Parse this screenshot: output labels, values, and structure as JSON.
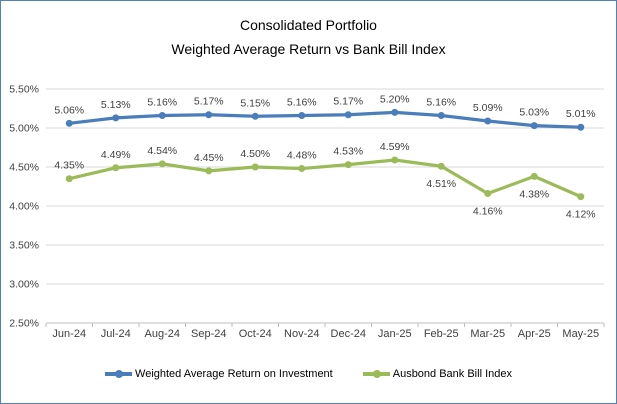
{
  "title": {
    "line1": "Consolidated Portfolio",
    "line2": "Weighted Average Return vs Bank Bill Index"
  },
  "chart_data": {
    "type": "line",
    "title": "Consolidated Portfolio Weighted Average Return vs Bank Bill Index",
    "categories": [
      "Jun-24",
      "Jul-24",
      "Aug-24",
      "Sep-24",
      "Oct-24",
      "Nov-24",
      "Dec-24",
      "Jan-25",
      "Feb-25",
      "Mar-25",
      "Apr-25",
      "May-25"
    ],
    "series": [
      {
        "name": "Weighted Average Return on Investment",
        "color": "#4A7EBB",
        "values": [
          5.06,
          5.13,
          5.16,
          5.17,
          5.15,
          5.16,
          5.17,
          5.2,
          5.16,
          5.09,
          5.03,
          5.01
        ],
        "data_labels": [
          "5.06%",
          "5.13%",
          "5.16%",
          "5.17%",
          "5.15%",
          "5.16%",
          "5.17%",
          "5.20%",
          "5.16%",
          "5.09%",
          "5.03%",
          "5.01%"
        ],
        "label_positions": [
          "above",
          "above",
          "above",
          "above",
          "above",
          "above",
          "above",
          "above",
          "above",
          "above",
          "above",
          "above"
        ]
      },
      {
        "name": "Ausbond Bank Bill Index",
        "color": "#9BBB59",
        "values": [
          4.35,
          4.49,
          4.54,
          4.45,
          4.5,
          4.48,
          4.53,
          4.59,
          4.51,
          4.16,
          4.38,
          4.12
        ],
        "data_labels": [
          "4.35%",
          "4.49%",
          "4.54%",
          "4.45%",
          "4.50%",
          "4.48%",
          "4.53%",
          "4.59%",
          "4.51%",
          "4.16%",
          "4.38%",
          "4.12%"
        ],
        "label_positions": [
          "above",
          "above",
          "above",
          "above",
          "above",
          "above",
          "above",
          "above",
          "below",
          "below",
          "below",
          "below"
        ]
      }
    ],
    "ylim": [
      2.5,
      5.5
    ],
    "yticks": [
      {
        "value": 5.5,
        "label": "5.50%"
      },
      {
        "value": 5.0,
        "label": "5.00%"
      },
      {
        "value": 4.5,
        "label": "4.50%"
      },
      {
        "value": 4.0,
        "label": "4.00%"
      },
      {
        "value": 3.5,
        "label": "3.50%"
      },
      {
        "value": 3.0,
        "label": "3.00%"
      },
      {
        "value": 2.5,
        "label": "2.50%"
      }
    ],
    "grid": true,
    "legend_position": "bottom"
  },
  "colors": {
    "chart_border": "#4F81BD",
    "gridline": "#D9D9D9",
    "axis_line": "#BFBFBF",
    "axis_text": "#3F3F3F",
    "data_label_text": "#3F3F3F",
    "title_text": "#000000",
    "background": "#FFFFFF"
  },
  "legend": {
    "items": [
      {
        "label": "Weighted Average Return on Investment",
        "color": "#4A7EBB"
      },
      {
        "label": "Ausbond Bank Bill Index",
        "color": "#9BBB59"
      }
    ]
  }
}
